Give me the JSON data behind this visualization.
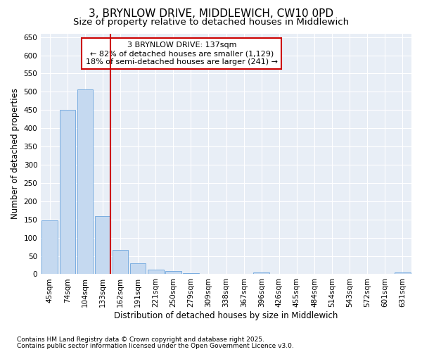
{
  "title": "3, BRYNLOW DRIVE, MIDDLEWICH, CW10 0PD",
  "subtitle": "Size of property relative to detached houses in Middlewich",
  "xlabel": "Distribution of detached houses by size in Middlewich",
  "ylabel": "Number of detached properties",
  "categories": [
    "45sqm",
    "74sqm",
    "104sqm",
    "133sqm",
    "162sqm",
    "191sqm",
    "221sqm",
    "250sqm",
    "279sqm",
    "309sqm",
    "338sqm",
    "367sqm",
    "396sqm",
    "426sqm",
    "455sqm",
    "484sqm",
    "514sqm",
    "543sqm",
    "572sqm",
    "601sqm",
    "631sqm"
  ],
  "values": [
    148,
    450,
    507,
    160,
    67,
    30,
    13,
    8,
    3,
    0,
    0,
    0,
    4,
    0,
    0,
    0,
    0,
    0,
    0,
    0,
    4
  ],
  "bar_color": "#c5d9f0",
  "bar_edge_color": "#7aade0",
  "highlight_line_index": 3,
  "annotation_title": "3 BRYNLOW DRIVE: 137sqm",
  "annotation_line1": "← 82% of detached houses are smaller (1,129)",
  "annotation_line2": "18% of semi-detached houses are larger (241) →",
  "box_color": "#cc0000",
  "footnote1": "Contains HM Land Registry data © Crown copyright and database right 2025.",
  "footnote2": "Contains public sector information licensed under the Open Government Licence v3.0.",
  "ylim": [
    0,
    660
  ],
  "yticks": [
    0,
    50,
    100,
    150,
    200,
    250,
    300,
    350,
    400,
    450,
    500,
    550,
    600,
    650
  ],
  "bg_color": "#e8eef6",
  "fig_bg_color": "#ffffff",
  "title_fontsize": 11,
  "subtitle_fontsize": 9.5,
  "axis_label_fontsize": 8.5,
  "tick_fontsize": 7.5,
  "annotation_fontsize": 8
}
